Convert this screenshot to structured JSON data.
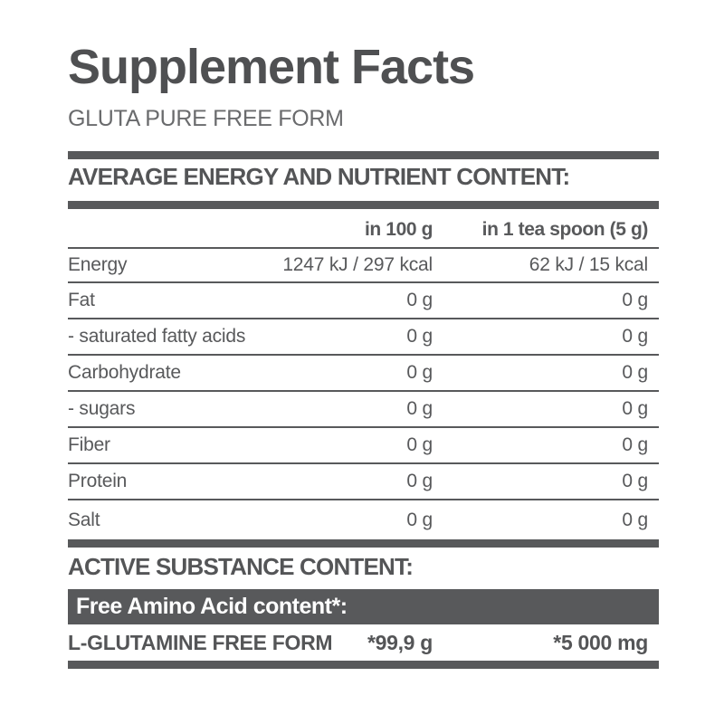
{
  "title": "Supplement Facts",
  "subtitle": "GLUTA PURE FREE FORM",
  "sections": {
    "nutrition_heading": "AVERAGE ENERGY AND NUTRIENT CONTENT:",
    "active_heading": "ACTIVE SUBSTANCE CONTENT:",
    "amino_banner": "Free Amino Acid content*:"
  },
  "table": {
    "columns": {
      "name": "",
      "per_100g": "in 100 g",
      "per_serving": "in 1 tea spoon (5 g)"
    },
    "rows": [
      {
        "name": "Energy",
        "per_100g": "1247 kJ / 297 kcal",
        "per_serving": "62 kJ / 15 kcal"
      },
      {
        "name": "Fat",
        "per_100g": "0 g",
        "per_serving": "0 g"
      },
      {
        "name": "- saturated fatty acids",
        "per_100g": "0 g",
        "per_serving": "0 g"
      },
      {
        "name": "Carbohydrate",
        "per_100g": "0 g",
        "per_serving": "0 g"
      },
      {
        "name": "- sugars",
        "per_100g": "0 g",
        "per_serving": "0 g"
      },
      {
        "name": "Fiber",
        "per_100g": "0 g",
        "per_serving": "0 g"
      },
      {
        "name": "Protein",
        "per_100g": "0 g",
        "per_serving": "0 g"
      },
      {
        "name": "Salt",
        "per_100g": "0 g",
        "per_serving": "0 g"
      }
    ]
  },
  "active_row": {
    "name": "L-GLUTAMINE FREE FORM",
    "per_100g": "*99,9 g",
    "per_serving": "*5 000 mg"
  },
  "colors": {
    "ink": "#58595b",
    "background": "#ffffff",
    "banner_text": "#ffffff"
  }
}
